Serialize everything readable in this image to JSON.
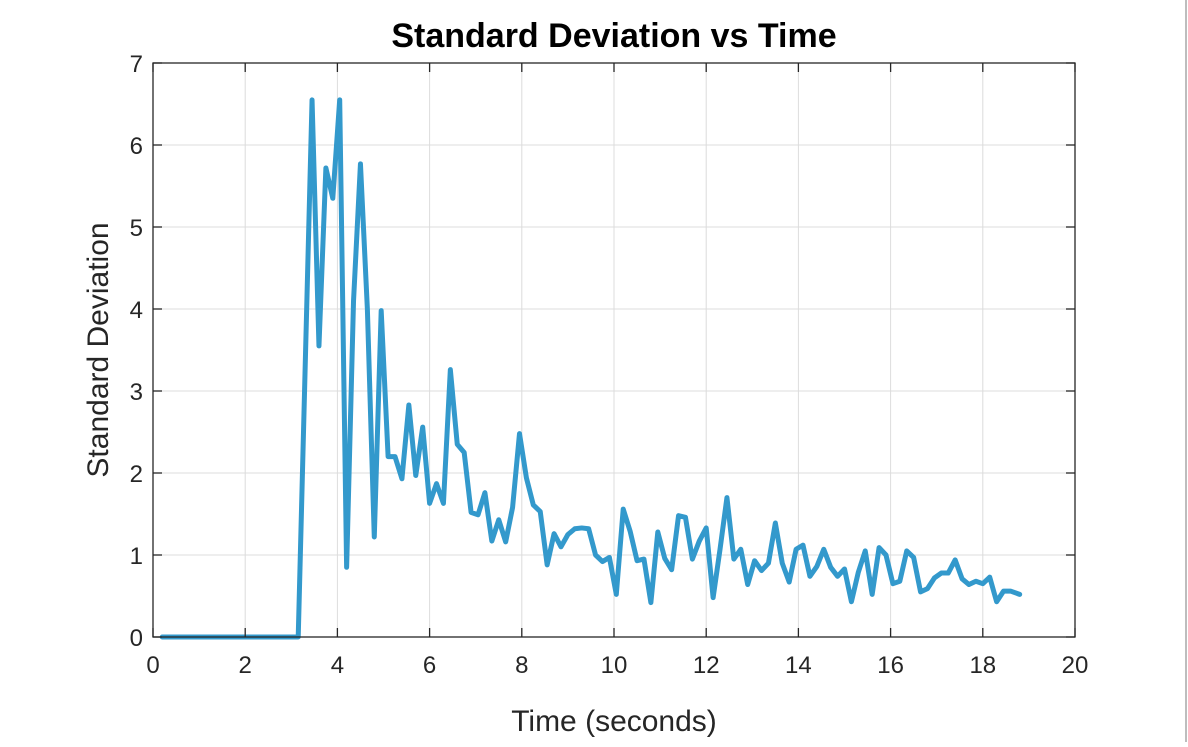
{
  "chart_data": {
    "type": "line",
    "title": "Standard Deviation vs Time",
    "xlabel": "Time (seconds)",
    "ylabel": "Standard Deviation",
    "xlim": [
      0,
      20
    ],
    "ylim": [
      0,
      7
    ],
    "xticks": [
      0,
      2,
      4,
      6,
      8,
      10,
      12,
      14,
      16,
      18,
      20
    ],
    "yticks": [
      0,
      1,
      2,
      3,
      4,
      5,
      6,
      7
    ],
    "grid": true,
    "legend": "none",
    "line_color": "#3399cc",
    "series": [
      {
        "x": [
          0.2,
          3.15,
          3.45,
          3.6,
          3.75,
          3.9,
          4.05,
          4.2,
          4.35,
          4.5,
          4.65,
          4.8,
          4.95,
          5.1,
          5.25,
          5.4,
          5.55,
          5.7,
          5.85,
          6.0,
          6.15,
          6.3,
          6.45,
          6.6,
          6.75,
          6.9,
          7.05,
          7.2,
          7.35,
          7.5,
          7.65,
          7.8,
          7.95,
          8.1,
          8.25,
          8.4,
          8.55,
          8.7,
          8.85,
          9.0,
          9.15,
          9.3,
          9.45,
          9.6,
          9.75,
          9.9,
          10.05,
          10.2,
          10.35,
          10.5,
          10.65,
          10.8,
          10.95,
          11.1,
          11.25,
          11.4,
          11.55,
          11.7,
          11.85,
          12.0,
          12.15,
          12.3,
          12.45,
          12.6,
          12.75,
          12.9,
          13.05,
          13.2,
          13.35,
          13.5,
          13.65,
          13.8,
          13.95,
          14.1,
          14.25,
          14.4,
          14.55,
          14.7,
          14.85,
          15.0,
          15.15,
          15.3,
          15.45,
          15.6,
          15.75,
          15.9,
          16.05,
          16.2,
          16.35,
          16.5,
          16.65,
          16.8,
          16.95,
          17.1,
          17.25,
          17.4,
          17.55,
          17.7,
          17.85,
          18.0,
          18.15,
          18.3,
          18.45,
          18.6,
          18.8
        ],
        "y": [
          0.0,
          0.0,
          6.55,
          3.55,
          5.72,
          5.35,
          6.55,
          0.85,
          4.1,
          5.77,
          4.0,
          1.22,
          3.98,
          2.2,
          2.2,
          1.93,
          2.83,
          1.97,
          2.56,
          1.63,
          1.87,
          1.63,
          3.26,
          2.35,
          2.25,
          1.52,
          1.49,
          1.76,
          1.17,
          1.43,
          1.16,
          1.58,
          2.48,
          1.94,
          1.61,
          1.53,
          0.88,
          1.26,
          1.1,
          1.25,
          1.32,
          1.33,
          1.32,
          1.0,
          0.92,
          0.97,
          0.52,
          1.56,
          1.29,
          0.93,
          0.95,
          0.42,
          1.28,
          0.96,
          0.82,
          1.48,
          1.46,
          0.95,
          1.17,
          1.33,
          0.48,
          1.07,
          1.7,
          0.95,
          1.07,
          0.64,
          0.93,
          0.81,
          0.9,
          1.39,
          0.9,
          0.67,
          1.07,
          1.12,
          0.74,
          0.86,
          1.07,
          0.85,
          0.74,
          0.83,
          0.43,
          0.79,
          1.05,
          0.52,
          1.09,
          1.0,
          0.65,
          0.68,
          1.05,
          0.97,
          0.55,
          0.59,
          0.72,
          0.78,
          0.78,
          0.94,
          0.71,
          0.64,
          0.68,
          0.65,
          0.73,
          0.43,
          0.56,
          0.56,
          0.52
        ]
      }
    ]
  }
}
